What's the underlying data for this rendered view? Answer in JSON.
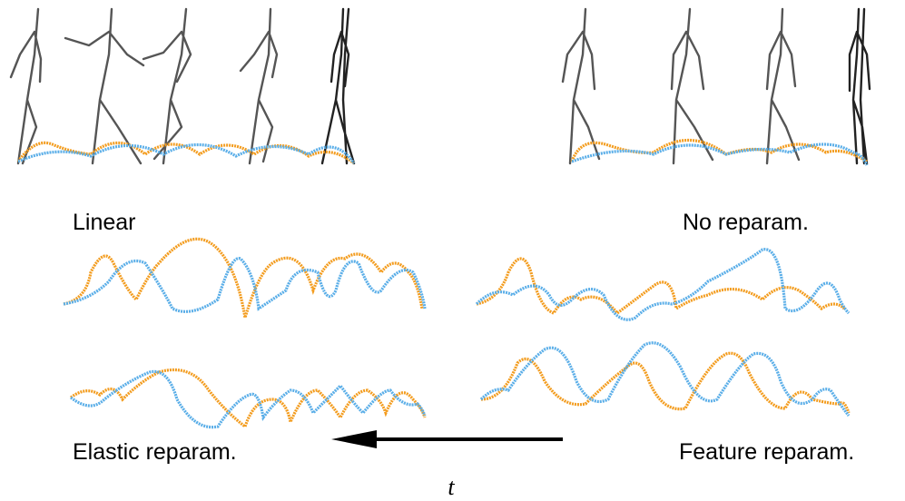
{
  "labels": {
    "linear": "Linear",
    "no_reparam": "No reparam.",
    "elastic_reparam": "Elastic reparam.",
    "feature_reparam": "Feature reparam."
  },
  "axis_label": "t"
}
